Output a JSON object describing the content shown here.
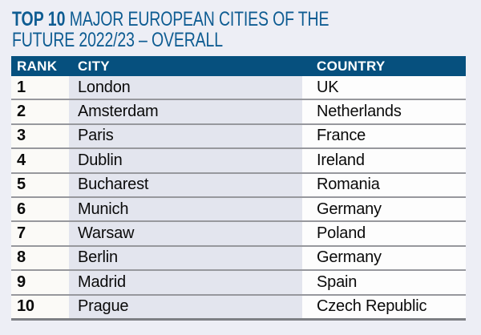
{
  "page": {
    "background_color": "#edeef5",
    "accent_blue": "#06507e",
    "title_blue": "#0e5c92",
    "city_column_tint": "#e3e5ee",
    "separator_gray": "#97989d"
  },
  "title": {
    "bold": "TOP 10",
    "line1_rest": " MAJOR EUROPEAN CITIES OF THE",
    "line2": "FUTURE 2022/23 – OVERALL"
  },
  "table": {
    "columns": [
      "RANK",
      "CITY",
      "COUNTRY"
    ],
    "rows": [
      {
        "rank": "1",
        "city": "London",
        "country": "UK"
      },
      {
        "rank": "2",
        "city": "Amsterdam",
        "country": "Netherlands"
      },
      {
        "rank": "3",
        "city": "Paris",
        "country": "France"
      },
      {
        "rank": "4",
        "city": "Dublin",
        "country": "Ireland"
      },
      {
        "rank": "5",
        "city": "Bucharest",
        "country": "Romania"
      },
      {
        "rank": "6",
        "city": "Munich",
        "country": "Germany"
      },
      {
        "rank": "7",
        "city": "Warsaw",
        "country": "Poland"
      },
      {
        "rank": "8",
        "city": "Berlin",
        "country": "Germany"
      },
      {
        "rank": "9",
        "city": "Madrid",
        "country": "Spain"
      },
      {
        "rank": "10",
        "city": "Prague",
        "country": "Czech Republic"
      }
    ]
  }
}
